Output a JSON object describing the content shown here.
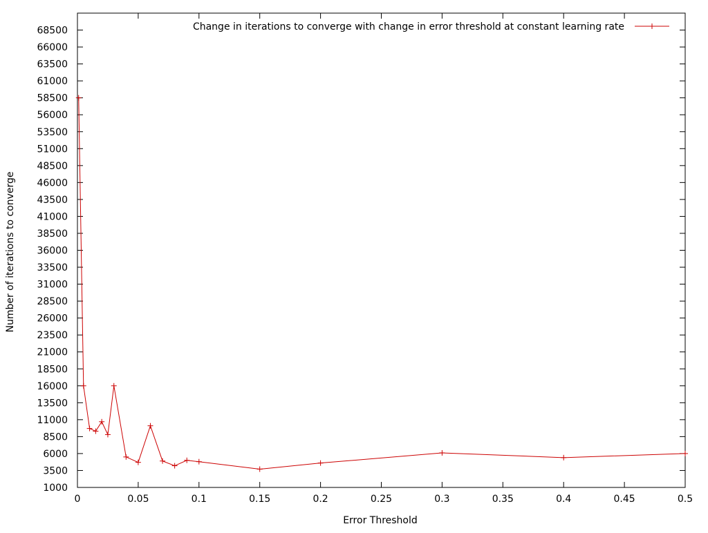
{
  "chart_data": {
    "type": "line",
    "title": "",
    "xlabel": "Error Threshold",
    "ylabel": "Number of iterations to converge",
    "xlim": [
      0,
      0.5
    ],
    "ylim": [
      1000,
      71000
    ],
    "x_ticks": [
      0,
      0.05,
      0.1,
      0.15,
      0.2,
      0.25,
      0.3,
      0.35,
      0.4,
      0.45,
      0.5
    ],
    "x_tick_labels": [
      "0",
      "0.05",
      "0.1",
      "0.15",
      "0.2",
      "0.25",
      "0.3",
      "0.35",
      "0.4",
      "0.45",
      "0.5"
    ],
    "y_ticks": [
      1000,
      3500,
      6000,
      8500,
      11000,
      13500,
      16000,
      18500,
      21000,
      23500,
      26000,
      28500,
      31000,
      33500,
      36000,
      38500,
      41000,
      43500,
      46000,
      48500,
      51000,
      53500,
      56000,
      58500,
      61000,
      63500,
      66000,
      68500
    ],
    "y_tick_labels": [
      "1000",
      "3500",
      "6000",
      "8500",
      "11000",
      "13500",
      "16000",
      "18500",
      "21000",
      "23500",
      "26000",
      "28500",
      "31000",
      "33500",
      "36000",
      "38500",
      "41000",
      "43500",
      "46000",
      "48500",
      "51000",
      "53500",
      "56000",
      "58500",
      "61000",
      "63500",
      "66000",
      "68500"
    ],
    "grid": false,
    "legend_position": "top-right",
    "series": [
      {
        "name": "Change in iterations to converge with change in error threshold at constant learning rate",
        "color": "#cc0000",
        "marker": "plus",
        "x": [
          0.001,
          0.005,
          0.01,
          0.015,
          0.02,
          0.025,
          0.03,
          0.04,
          0.05,
          0.06,
          0.07,
          0.08,
          0.09,
          0.1,
          0.15,
          0.2,
          0.3,
          0.4,
          0.5
        ],
        "y": [
          58500,
          16000,
          9700,
          9300,
          10700,
          8800,
          16000,
          5500,
          4700,
          10100,
          4900,
          4200,
          5000,
          4800,
          3700,
          4600,
          6100,
          5400,
          6000
        ]
      }
    ]
  }
}
